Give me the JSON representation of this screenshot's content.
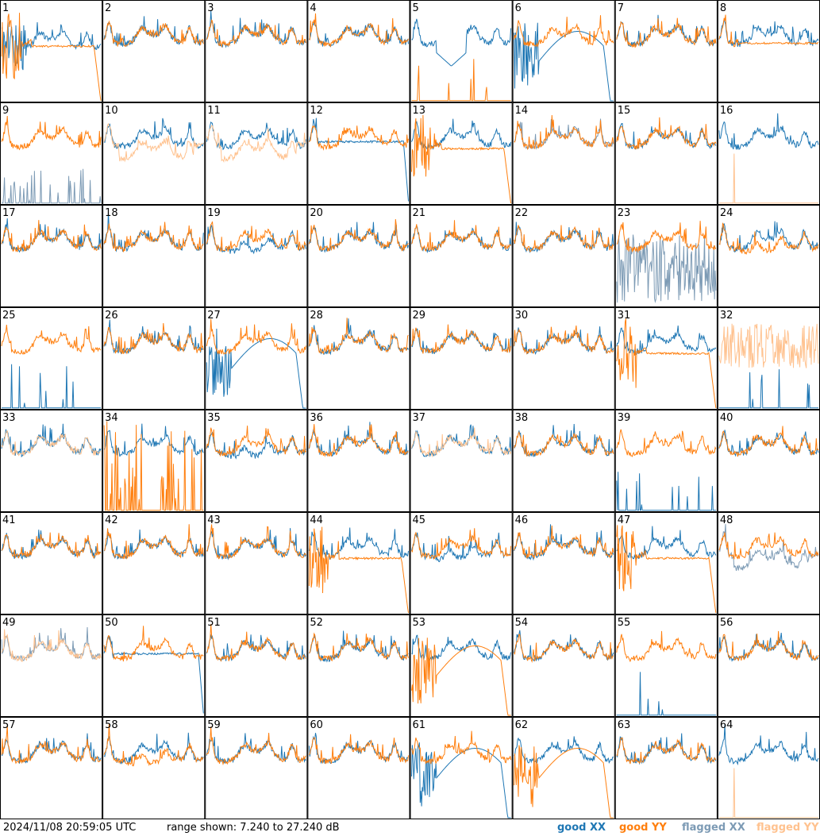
{
  "chart_data": {
    "type": "line",
    "description_units": "dB",
    "range_text": "range shown: 7.240 to 27.240 dB",
    "ylim": [
      7.24,
      27.24
    ],
    "timestamp": "2024/11/08 20:59:05 UTC",
    "grid": "8x8",
    "panels": [
      {
        "id": "1",
        "xx": "low_dip",
        "yy": "edge_drop",
        "f": {
          "yylow": true
        }
      },
      {
        "id": "2",
        "xx": "normal",
        "yy": "normal"
      },
      {
        "id": "3",
        "xx": "normal",
        "yy": "normal"
      },
      {
        "id": "4",
        "xx": "normal",
        "yy": "normal"
      },
      {
        "id": "5",
        "xx": "deep_dip",
        "yy": "flat_low_spikes"
      },
      {
        "id": "6",
        "xx": "deep_dip_drop",
        "yy": "high_flat"
      },
      {
        "id": "7",
        "xx": "normal",
        "yy": "normal"
      },
      {
        "id": "8",
        "xx": "normal",
        "yy": "flat_high"
      },
      {
        "id": "9",
        "xx": "flagged_low_spikes",
        "yy": "normal"
      },
      {
        "id": "10",
        "xx": "normal",
        "yy": "flagged_dip"
      },
      {
        "id": "11",
        "xx": "normal",
        "yy": "flagged_dip"
      },
      {
        "id": "12",
        "xx": "flat_drop",
        "yy": "normal"
      },
      {
        "id": "13",
        "xx": "normal",
        "yy": "edge_drop"
      },
      {
        "id": "14",
        "xx": "flagged_normal",
        "yy": "normal"
      },
      {
        "id": "15",
        "xx": "normal",
        "yy": "normal"
      },
      {
        "id": "16",
        "xx": "normal",
        "yy": "flagged_low_spike"
      },
      {
        "id": "17",
        "xx": "normal",
        "yy": "normal"
      },
      {
        "id": "18",
        "xx": "normal",
        "yy": "normal"
      },
      {
        "id": "19",
        "xx": "dip",
        "yy": "normal"
      },
      {
        "id": "20",
        "xx": "normal",
        "yy": "normal"
      },
      {
        "id": "21",
        "xx": "normal",
        "yy": "normal"
      },
      {
        "id": "22",
        "xx": "normal",
        "yy": "normal"
      },
      {
        "id": "23",
        "xx": "flagged_noise",
        "yy": "normal"
      },
      {
        "id": "24",
        "xx": "normal",
        "yy": "dip"
      },
      {
        "id": "25",
        "xx": "flat_low_spikes",
        "yy": "normal"
      },
      {
        "id": "26",
        "xx": "normal",
        "yy": "normal"
      },
      {
        "id": "27",
        "xx": "deep_dip_drop",
        "yy": "normal"
      },
      {
        "id": "28",
        "xx": "normal",
        "yy": "normal"
      },
      {
        "id": "29",
        "xx": "normal",
        "yy": "normal"
      },
      {
        "id": "30",
        "xx": "normal",
        "yy": "normal"
      },
      {
        "id": "31",
        "xx": "normal",
        "yy": "edge_drop"
      },
      {
        "id": "32",
        "xx": "flat_low_spikes",
        "yy": "flagged_noisy"
      },
      {
        "id": "33",
        "xx": "normal",
        "yy": "flagged_normal"
      },
      {
        "id": "34",
        "xx": "normal",
        "yy": "low_spikes"
      },
      {
        "id": "35",
        "xx": "dip",
        "yy": "normal"
      },
      {
        "id": "36",
        "xx": "normal",
        "yy": "normal"
      },
      {
        "id": "37",
        "xx": "normal",
        "yy": "flagged_normal"
      },
      {
        "id": "38",
        "xx": "normal",
        "yy": "normal"
      },
      {
        "id": "39",
        "xx": "flat_low_spikes",
        "yy": "normal"
      },
      {
        "id": "40",
        "xx": "normal",
        "yy": "normal"
      },
      {
        "id": "41",
        "xx": "normal",
        "yy": "normal"
      },
      {
        "id": "42",
        "xx": "normal",
        "yy": "normal"
      },
      {
        "id": "43",
        "xx": "normal",
        "yy": "normal"
      },
      {
        "id": "44",
        "xx": "normal",
        "yy": "edge_drop"
      },
      {
        "id": "45",
        "xx": "dip",
        "yy": "normal"
      },
      {
        "id": "46",
        "xx": "normal",
        "yy": "normal"
      },
      {
        "id": "47",
        "xx": "normal",
        "yy": "edge_drop"
      },
      {
        "id": "48",
        "xx": "flagged_dip",
        "yy": "normal"
      },
      {
        "id": "49",
        "xx": "flagged_normal",
        "yy": "flagged_normal"
      },
      {
        "id": "50",
        "xx": "flat_drop",
        "yy": "normal"
      },
      {
        "id": "51",
        "xx": "normal",
        "yy": "normal"
      },
      {
        "id": "52",
        "xx": "normal",
        "yy": "normal"
      },
      {
        "id": "53",
        "xx": "normal",
        "yy": "deep_dip_drop"
      },
      {
        "id": "54",
        "xx": "normal",
        "yy": "normal"
      },
      {
        "id": "55",
        "xx": "flat_low_spikes",
        "yy": "normal"
      },
      {
        "id": "56",
        "xx": "normal",
        "yy": "normal"
      },
      {
        "id": "57",
        "xx": "normal",
        "yy": "normal"
      },
      {
        "id": "58",
        "xx": "normal",
        "yy": "dip"
      },
      {
        "id": "59",
        "xx": "normal",
        "yy": "normal"
      },
      {
        "id": "60",
        "xx": "normal",
        "yy": "normal"
      },
      {
        "id": "61",
        "xx": "deep_dip_drop",
        "yy": "normal"
      },
      {
        "id": "62",
        "xx": "normal",
        "yy": "deep_dip_drop"
      },
      {
        "id": "63",
        "xx": "normal",
        "yy": "normal"
      },
      {
        "id": "64",
        "xx": "normal",
        "yy": "flagged_low_spike"
      }
    ],
    "legend": {
      "good_xx_label": "good XX",
      "good_yy_label": "good YY",
      "flagged_xx_label": "flagged XX",
      "flagged_yy_label": "flagged YY"
    },
    "colors": {
      "good_xx": "#1f77b4",
      "good_yy": "#ff7f0e",
      "flagged_xx": "#7d9bb5",
      "flagged_yy": "#ffc28f",
      "frame": "#000000"
    }
  }
}
